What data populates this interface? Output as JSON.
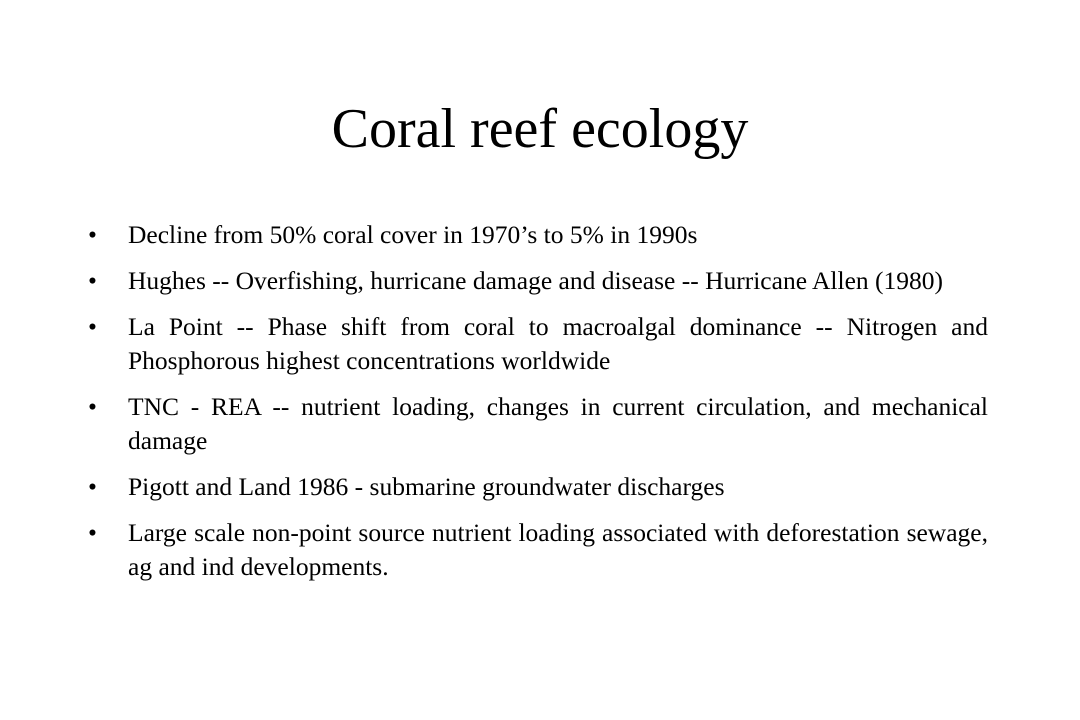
{
  "slide": {
    "title": "Coral reef ecology",
    "bullet_glyph": "•",
    "bullets": [
      "Decline from 50% coral cover in 1970’s to 5% in 1990s",
      "Hughes -- Overfishing, hurricane damage and disease -- Hurricane Allen (1980)",
      "La Point -- Phase shift from coral to macroalgal dominance -- Nitrogen and Phosphorous highest concentrations worldwide",
      "TNC - REA -- nutrient loading, changes in current circulation, and mechanical damage",
      "Pigott and Land 1986 - submarine groundwater discharges",
      "Large scale non-point source nutrient loading associated with deforestation sewage, ag and ind developments."
    ]
  }
}
